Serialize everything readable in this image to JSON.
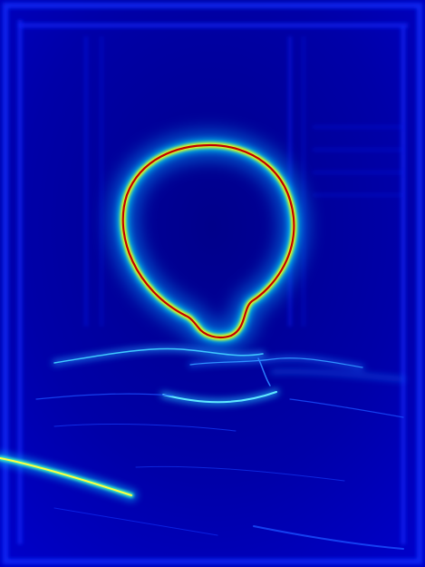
{
  "image": {
    "kind": "edge-detection gradient-magnitude heatmap",
    "colormap": "jet",
    "colors": {
      "background": "#0000a8",
      "background_dark": "#000070",
      "low": "#0000ff",
      "mid_low": "#0080ff",
      "mid": "#00ffff",
      "mid_high": "#ffff00",
      "high": "#ff8000",
      "peak": "#8b0000"
    },
    "features": [
      "ring-contour",
      "horizontal-ridge-lines",
      "diagonal-strong-edge",
      "border-frame"
    ]
  }
}
